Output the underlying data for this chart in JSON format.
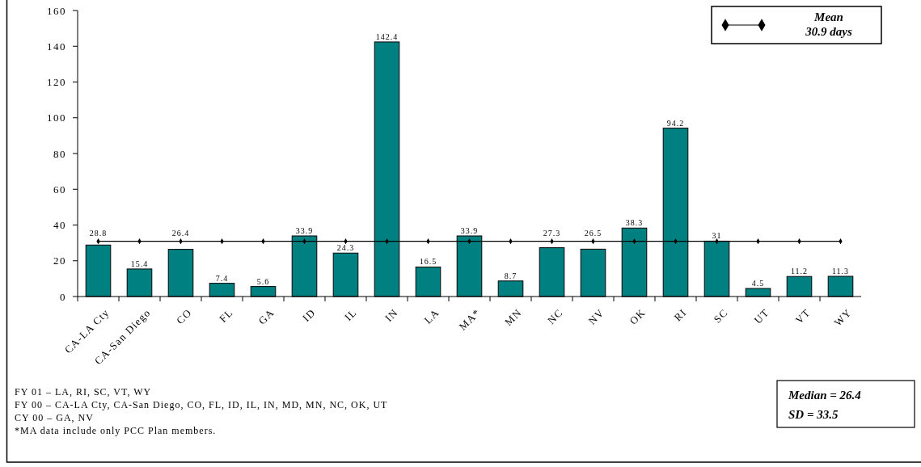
{
  "chart_data": {
    "type": "bar",
    "categories": [
      "CA-LA Cty",
      "CA-San Diego",
      "CO",
      "FL",
      "GA",
      "ID",
      "IL",
      "IN",
      "LA",
      "MA*",
      "MN",
      "NC",
      "NV",
      "OK",
      "RI",
      "SC",
      "UT",
      "VT",
      "WY"
    ],
    "series": [
      {
        "color": "#008080",
        "values": [
          28.8,
          15.4,
          26.4,
          7.4,
          5.6,
          33.9,
          24.3,
          142.4,
          16.5,
          33.9,
          8.7,
          27.3,
          26.5,
          38.3,
          94.2,
          31,
          4.5,
          11.2,
          11.3
        ],
        "value_labels": [
          "28.8",
          "15.4",
          "26.4",
          "7.4",
          "5.6",
          "33.9",
          "24.3",
          "142.4",
          "16.5",
          "33.9",
          "8.7",
          "27.3",
          "26.5",
          "38.3",
          "94.2",
          "31",
          "4.5",
          "11.2",
          "11.3"
        ]
      },
      {
        "type": "line",
        "name": "Mean 30.9 days",
        "color": "#000000",
        "values": [
          30.9,
          30.9,
          30.9,
          30.9,
          30.9,
          30.9,
          30.9,
          30.9,
          30.9,
          30.9,
          30.9,
          30.9,
          30.9,
          30.9,
          30.9,
          30.9,
          30.9,
          30.9,
          30.9
        ]
      }
    ],
    "ylim": [
      0,
      160
    ],
    "yticks": [
      0,
      20,
      40,
      60,
      80,
      100,
      120,
      140,
      160
    ],
    "marker": "diamond",
    "legend": "top right",
    "grid": false,
    "annotations": [
      "FY 01 –  LA, RI, SC, VT, WY",
      "FY 00 – CA-LA Cty, CA-San Diego, CO, FL, ID, IL, IN, MD, MN,  NC, OK, UT",
      "CY 00 – GA, NV",
      "*MA data include only PCC Plan members.",
      "Median = 26.4",
      "SD = 33.5"
    ]
  }
}
